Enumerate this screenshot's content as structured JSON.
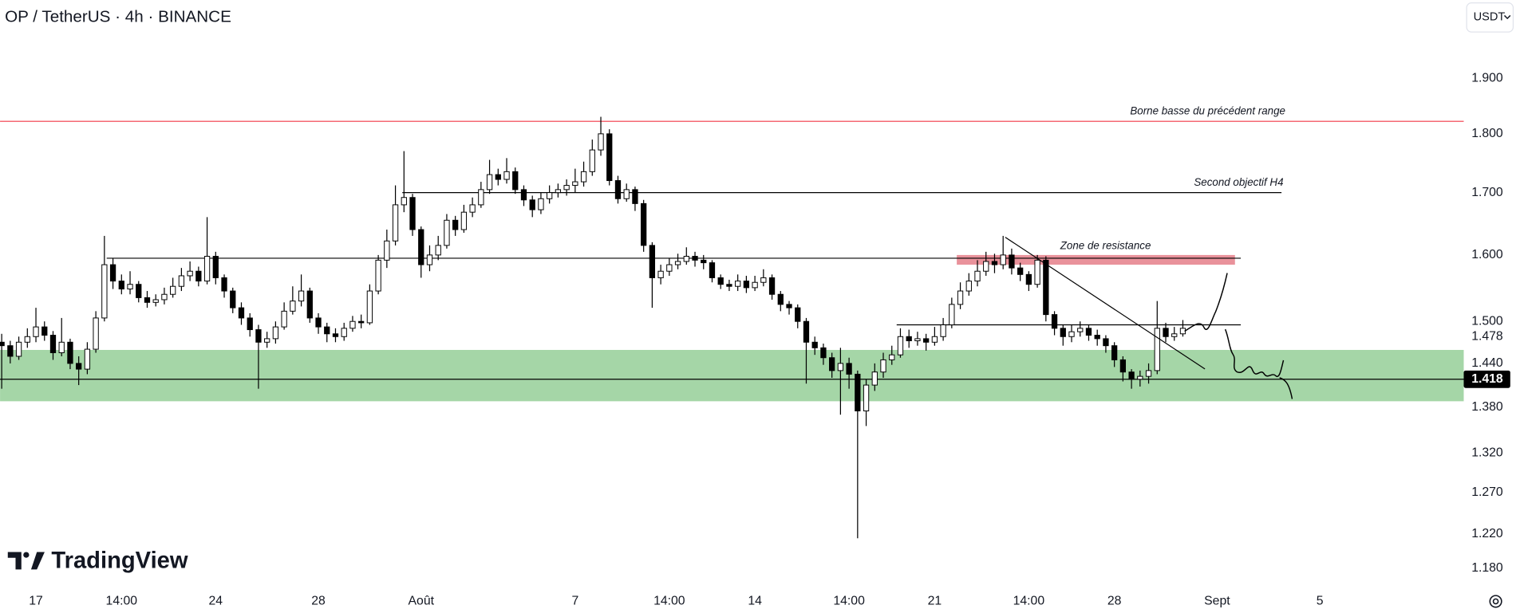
{
  "chart_data": {
    "type": "candlestick",
    "title": "OP / TetherUS · 4h · BINANCE",
    "currency": "USDT",
    "watermark": "TradingView",
    "categories": [
      null,
      null,
      null,
      null,
      "17",
      null,
      null,
      null,
      null,
      null,
      null,
      null,
      null,
      null,
      "14:00",
      null,
      null,
      null,
      null,
      null,
      null,
      null,
      null,
      null,
      null,
      "24",
      null,
      null,
      null,
      null,
      null,
      null,
      null,
      null,
      null,
      null,
      null,
      "28",
      null,
      null,
      null,
      null,
      null,
      null,
      null,
      null,
      null,
      null,
      null,
      "Août",
      null,
      null,
      null,
      null,
      null,
      null,
      null,
      null,
      null,
      null,
      null,
      null,
      null,
      null,
      null,
      null,
      null,
      "7",
      null,
      null,
      null,
      null,
      null,
      null,
      null,
      null,
      null,
      null,
      "14:00",
      null,
      null,
      null,
      null,
      null,
      null,
      null,
      null,
      null,
      "14",
      null,
      null,
      null,
      null,
      null,
      null,
      null,
      null,
      null,
      null,
      "14:00",
      null,
      null,
      null,
      null,
      null,
      null,
      null,
      null,
      null,
      "21",
      null,
      null,
      null,
      null,
      null,
      null,
      null,
      null,
      null,
      null,
      "14:00",
      null,
      null,
      null,
      null,
      null,
      null,
      null,
      null,
      null,
      "28",
      null,
      null,
      null,
      null,
      null,
      null,
      null,
      null,
      null,
      null,
      null,
      "Sept",
      null,
      null,
      null,
      null,
      null,
      null,
      null,
      null,
      null,
      null,
      null,
      "5",
      null,
      null,
      null,
      null,
      null,
      null,
      null,
      null,
      null,
      null,
      null,
      null,
      null,
      null,
      null,
      null
    ],
    "open": [
      1.47,
      1.465,
      1.45,
      1.47,
      1.478,
      1.492,
      1.48,
      1.455,
      1.47,
      1.44,
      1.432,
      1.46,
      1.505,
      1.585,
      1.56,
      1.548,
      1.555,
      1.535,
      1.528,
      1.532,
      1.54,
      1.552,
      1.568,
      1.575,
      1.56,
      1.598,
      1.565,
      1.545,
      1.52,
      1.505,
      1.488,
      1.47,
      1.475,
      1.492,
      1.515,
      1.53,
      1.545,
      1.505,
      1.492,
      1.482,
      1.478,
      1.49,
      1.5,
      1.498,
      1.545,
      1.592,
      1.622,
      1.68,
      1.692,
      1.64,
      1.585,
      1.6,
      1.615,
      1.655,
      1.64,
      1.668,
      1.68,
      1.705,
      1.73,
      1.722,
      1.735,
      1.705,
      1.688,
      1.672,
      1.69,
      1.7,
      1.705,
      1.712,
      1.718,
      1.735,
      1.772,
      1.8,
      1.72,
      1.69,
      1.705,
      1.682,
      1.615,
      1.565,
      1.575,
      1.585,
      1.59,
      1.598,
      1.592,
      1.588,
      1.565,
      1.555,
      1.552,
      1.56,
      1.55,
      1.558,
      1.565,
      1.54,
      1.525,
      1.52,
      1.5,
      1.47,
      1.462,
      1.448,
      1.43,
      1.44,
      1.425,
      1.375,
      1.41,
      1.428,
      1.445,
      1.452,
      1.478,
      1.472,
      1.475,
      1.47,
      1.478,
      1.495,
      1.525,
      1.545,
      1.56,
      1.575,
      1.59,
      1.585,
      1.6,
      1.58,
      1.57,
      1.555,
      1.592,
      1.51,
      1.49,
      1.478,
      1.485,
      1.49,
      1.48,
      1.475,
      1.465,
      1.445,
      1.428,
      1.418,
      1.422,
      1.43,
      1.49,
      1.478,
      1.482,
      null,
      null,
      null,
      null,
      null,
      null,
      null,
      null,
      null,
      null,
      null,
      null,
      null,
      null,
      null,
      null,
      null,
      null,
      null,
      null,
      null,
      null,
      null,
      null,
      null,
      null,
      null,
      null,
      null,
      null,
      null,
      null
    ],
    "high": [
      1.482,
      1.472,
      1.478,
      1.49,
      1.52,
      1.5,
      1.486,
      1.505,
      1.475,
      1.45,
      1.47,
      1.515,
      1.63,
      1.595,
      1.57,
      1.575,
      1.56,
      1.545,
      1.54,
      1.55,
      1.565,
      1.58,
      1.59,
      1.582,
      1.66,
      1.605,
      1.57,
      1.55,
      1.528,
      1.512,
      1.495,
      1.485,
      1.5,
      1.528,
      1.552,
      1.57,
      1.55,
      1.512,
      1.498,
      1.49,
      1.498,
      1.508,
      1.51,
      1.555,
      1.6,
      1.64,
      1.712,
      1.77,
      1.698,
      1.645,
      1.615,
      1.63,
      1.665,
      1.662,
      1.68,
      1.692,
      1.718,
      1.755,
      1.74,
      1.758,
      1.742,
      1.712,
      1.695,
      1.7,
      1.712,
      1.715,
      1.722,
      1.74,
      1.752,
      1.79,
      1.83,
      1.808,
      1.728,
      1.715,
      1.71,
      1.688,
      1.62,
      1.585,
      1.595,
      1.602,
      1.612,
      1.605,
      1.6,
      1.592,
      1.57,
      1.562,
      1.57,
      1.568,
      1.568,
      1.578,
      1.57,
      1.545,
      1.53,
      1.525,
      1.505,
      1.478,
      1.468,
      1.455,
      1.462,
      1.448,
      1.43,
      1.418,
      1.44,
      1.455,
      1.465,
      1.49,
      1.488,
      1.485,
      1.482,
      1.492,
      1.505,
      1.535,
      1.558,
      1.572,
      1.592,
      1.605,
      1.602,
      1.63,
      1.61,
      1.588,
      1.575,
      1.6,
      1.598,
      1.515,
      1.495,
      1.495,
      1.5,
      1.495,
      1.488,
      1.48,
      1.47,
      1.45,
      1.432,
      1.43,
      1.44,
      1.53,
      1.498,
      1.492,
      1.502,
      null,
      null,
      null,
      null,
      null,
      null,
      null,
      null,
      null,
      null,
      null,
      null,
      null,
      null,
      null,
      null,
      null,
      null,
      null,
      null,
      null,
      null,
      null,
      null,
      null,
      null,
      null,
      null,
      null,
      null,
      null,
      null
    ],
    "low": [
      1.405,
      1.44,
      1.445,
      1.462,
      1.47,
      1.472,
      1.445,
      1.45,
      1.432,
      1.41,
      1.425,
      1.455,
      1.5,
      1.548,
      1.54,
      1.54,
      1.528,
      1.52,
      1.522,
      1.525,
      1.535,
      1.545,
      1.56,
      1.552,
      1.555,
      1.555,
      1.535,
      1.512,
      1.495,
      1.478,
      1.405,
      1.462,
      1.468,
      1.488,
      1.51,
      1.522,
      1.498,
      1.482,
      1.47,
      1.47,
      1.472,
      1.485,
      1.49,
      1.495,
      1.54,
      1.58,
      1.615,
      1.668,
      1.63,
      1.565,
      1.575,
      1.592,
      1.61,
      1.63,
      1.635,
      1.66,
      1.675,
      1.698,
      1.712,
      1.715,
      1.698,
      1.678,
      1.66,
      1.665,
      1.682,
      1.692,
      1.695,
      1.7,
      1.71,
      1.728,
      1.762,
      1.712,
      1.682,
      1.685,
      1.67,
      1.605,
      1.52,
      1.555,
      1.568,
      1.578,
      1.585,
      1.582,
      1.578,
      1.558,
      1.548,
      1.545,
      1.545,
      1.542,
      1.545,
      1.552,
      1.532,
      1.515,
      1.51,
      1.49,
      1.412,
      1.452,
      1.438,
      1.42,
      1.37,
      1.405,
      1.215,
      1.355,
      1.402,
      1.42,
      1.438,
      1.448,
      1.462,
      1.465,
      1.458,
      1.465,
      1.472,
      1.49,
      1.518,
      1.538,
      1.552,
      1.568,
      1.572,
      1.578,
      1.57,
      1.56,
      1.545,
      1.55,
      1.5,
      1.48,
      1.465,
      1.47,
      1.478,
      1.472,
      1.465,
      1.455,
      1.435,
      1.415,
      1.405,
      1.408,
      1.412,
      1.425,
      1.47,
      1.472,
      1.478,
      null,
      null,
      null,
      null,
      null,
      null,
      null,
      null,
      null,
      null,
      null,
      null,
      null,
      null,
      null,
      null,
      null,
      null,
      null,
      null,
      null,
      null,
      null,
      null,
      null,
      null,
      null,
      null,
      null,
      null,
      null,
      null
    ],
    "close": [
      1.465,
      1.45,
      1.47,
      1.478,
      1.492,
      1.48,
      1.455,
      1.47,
      1.44,
      1.432,
      1.46,
      1.505,
      1.585,
      1.56,
      1.548,
      1.555,
      1.535,
      1.528,
      1.532,
      1.54,
      1.552,
      1.568,
      1.575,
      1.56,
      1.598,
      1.565,
      1.545,
      1.52,
      1.505,
      1.488,
      1.47,
      1.475,
      1.492,
      1.515,
      1.53,
      1.545,
      1.505,
      1.492,
      1.482,
      1.478,
      1.49,
      1.5,
      1.498,
      1.545,
      1.592,
      1.622,
      1.68,
      1.692,
      1.64,
      1.585,
      1.6,
      1.615,
      1.655,
      1.64,
      1.668,
      1.68,
      1.705,
      1.73,
      1.722,
      1.735,
      1.705,
      1.688,
      1.672,
      1.69,
      1.7,
      1.705,
      1.712,
      1.718,
      1.735,
      1.772,
      1.8,
      1.72,
      1.69,
      1.705,
      1.682,
      1.615,
      1.565,
      1.575,
      1.585,
      1.59,
      1.598,
      1.592,
      1.588,
      1.565,
      1.555,
      1.552,
      1.56,
      1.55,
      1.558,
      1.565,
      1.54,
      1.525,
      1.52,
      1.5,
      1.47,
      1.462,
      1.448,
      1.43,
      1.44,
      1.425,
      1.375,
      1.41,
      1.428,
      1.445,
      1.452,
      1.478,
      1.472,
      1.475,
      1.47,
      1.478,
      1.495,
      1.525,
      1.545,
      1.56,
      1.575,
      1.59,
      1.585,
      1.6,
      1.58,
      1.57,
      1.555,
      1.592,
      1.51,
      1.49,
      1.478,
      1.485,
      1.49,
      1.48,
      1.475,
      1.465,
      1.445,
      1.428,
      1.418,
      1.422,
      1.43,
      1.49,
      1.478,
      1.482,
      1.49,
      null,
      null,
      null,
      null,
      null,
      null,
      null,
      null,
      null,
      null,
      null,
      null,
      null,
      null,
      null,
      null,
      null,
      null,
      null,
      null,
      null,
      null,
      null,
      null,
      null,
      null,
      null,
      null,
      null,
      null,
      null,
      null
    ],
    "up_color": "#ffffff",
    "down_color": "#000000",
    "wick_color": "#000000",
    "ylim": [
      1.16,
      2.05
    ],
    "log_scale": true,
    "yticks": [
      {
        "value": 1.18,
        "label": "1.180"
      },
      {
        "value": 1.22,
        "label": "1.220"
      },
      {
        "value": 1.27,
        "label": "1.270"
      },
      {
        "value": 1.32,
        "label": "1.320"
      },
      {
        "value": 1.38,
        "label": "1.380"
      },
      {
        "value": 1.44,
        "label": "1.440"
      },
      {
        "value": 1.5,
        "label": "1.500"
      },
      {
        "value": 1.6,
        "label": "1.600"
      },
      {
        "value": 1.7,
        "label": "1.700"
      },
      {
        "value": 1.8,
        "label": "1.800"
      },
      {
        "value": 1.9,
        "label": "1.900"
      }
    ],
    "marker_price": 1.478,
    "current_price": 1.418,
    "levels": [
      {
        "value": 1.822,
        "label": "Borne basse du précédent range",
        "color": "#f23645"
      },
      {
        "value": 1.7,
        "label": "Second objectif H4",
        "color": "#000000"
      },
      {
        "value": 1.595,
        "color": "#000000"
      },
      {
        "value": 1.495,
        "color": "#000000"
      },
      {
        "value": 1.418,
        "color": "#000000"
      }
    ],
    "zones": [
      {
        "from": 1.585,
        "to": 1.6,
        "label": "Zone de resistance",
        "color": "#e57f89"
      },
      {
        "from": 1.388,
        "to": 1.459,
        "color": "#a5d6a7"
      }
    ]
  }
}
